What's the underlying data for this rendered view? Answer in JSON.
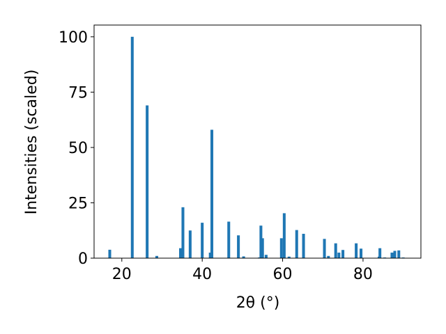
{
  "chart_data": {
    "type": "bar",
    "x_label": "2θ (°)",
    "y_label": "Intensities (scaled)",
    "x": [
      17.0,
      22.6,
      26.3,
      28.7,
      34.6,
      35.2,
      37.0,
      40.0,
      42.0,
      42.4,
      46.6,
      49.0,
      50.3,
      54.2,
      54.6,
      55.0,
      55.9,
      59.7,
      60.4,
      61.6,
      63.5,
      65.2,
      70.4,
      71.4,
      73.2,
      74.0,
      75.0,
      78.3,
      79.5,
      84.0,
      84.2,
      85.4,
      87.2,
      87.9,
      88.9,
      90.0
    ],
    "values": [
      3.8,
      100,
      69,
      1,
      4.5,
      23,
      12.5,
      16,
      2.5,
      58,
      16.5,
      10.3,
      0.8,
      0.3,
      14.7,
      9,
      1.5,
      9,
      20.3,
      0.7,
      12.7,
      11,
      8.7,
      1,
      6.7,
      2.5,
      3.7,
      6.7,
      4.3,
      0.7,
      4.5,
      0.3,
      2.5,
      3.3,
      3.5,
      0.3
    ],
    "color": "#1f77b4",
    "xlim": [
      13.1,
      94.4
    ],
    "xticks": [
      20,
      40,
      60,
      80
    ],
    "ylim": [
      0,
      105.3
    ],
    "yticks": [
      0,
      25,
      50,
      75,
      100
    ]
  }
}
